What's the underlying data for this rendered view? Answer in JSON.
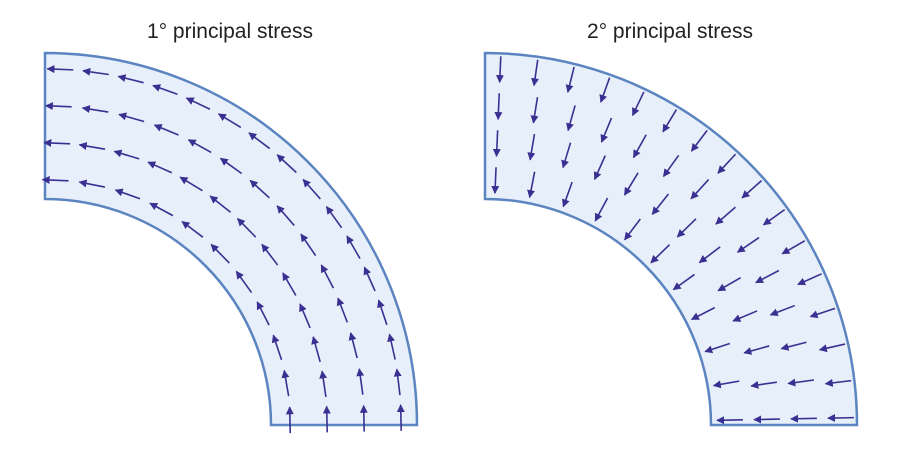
{
  "panels": [
    {
      "title": "1° principal stress"
    },
    {
      "title": "2° principal stress"
    }
  ]
}
